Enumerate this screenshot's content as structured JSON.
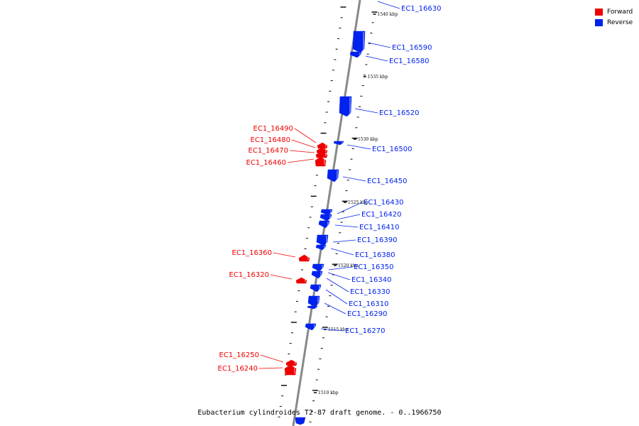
{
  "caption": "Eubacterium cylindroides T2-87 draft genome. - 0..1966750",
  "legend": {
    "forward_label": "Forward",
    "reverse_label": "Reverse",
    "forward_color": "#ee0000",
    "reverse_color": "#0022ee"
  },
  "colors": {
    "forward": "#ee0000",
    "reverse": "#0022ee",
    "backbone": "#888888"
  },
  "scale_labels": [
    "1540 kbp",
    "1535 kbp",
    "1530 kbp",
    "1525 kbp",
    "1520 kbp",
    "1515 kbp",
    "1510 kbp"
  ],
  "genes": [
    {
      "name": "EC1_16630",
      "strand": "reverse"
    },
    {
      "name": "EC1_16590",
      "strand": "reverse"
    },
    {
      "name": "EC1_16580",
      "strand": "reverse"
    },
    {
      "name": "EC1_16520",
      "strand": "reverse"
    },
    {
      "name": "EC1_16490",
      "strand": "forward"
    },
    {
      "name": "EC1_16480",
      "strand": "forward"
    },
    {
      "name": "EC1_16470",
      "strand": "forward"
    },
    {
      "name": "EC1_16460",
      "strand": "forward"
    },
    {
      "name": "EC1_16500",
      "strand": "reverse"
    },
    {
      "name": "EC1_16450",
      "strand": "reverse"
    },
    {
      "name": "EC1_16430",
      "strand": "reverse"
    },
    {
      "name": "EC1_16420",
      "strand": "reverse"
    },
    {
      "name": "EC1_16410",
      "strand": "reverse"
    },
    {
      "name": "EC1_16390",
      "strand": "reverse"
    },
    {
      "name": "EC1_16380",
      "strand": "reverse"
    },
    {
      "name": "EC1_16360",
      "strand": "forward"
    },
    {
      "name": "EC1_16350",
      "strand": "reverse"
    },
    {
      "name": "EC1_16340",
      "strand": "reverse"
    },
    {
      "name": "EC1_16320",
      "strand": "forward"
    },
    {
      "name": "EC1_16330",
      "strand": "reverse"
    },
    {
      "name": "EC1_16310",
      "strand": "reverse"
    },
    {
      "name": "EC1_16290",
      "strand": "reverse"
    },
    {
      "name": "EC1_16270",
      "strand": "reverse"
    },
    {
      "name": "EC1_16250",
      "strand": "forward"
    },
    {
      "name": "EC1_16240",
      "strand": "forward"
    }
  ]
}
